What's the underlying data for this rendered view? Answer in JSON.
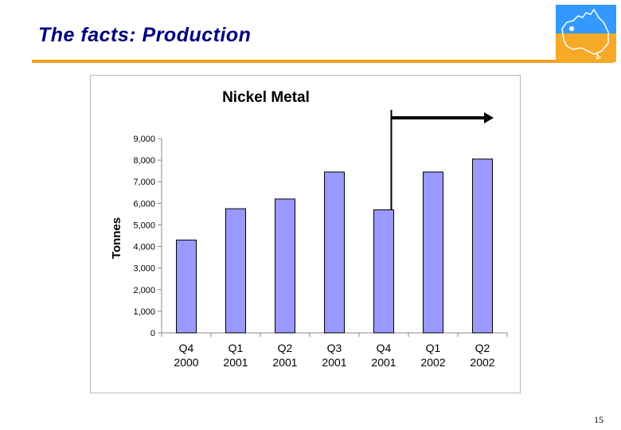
{
  "slide": {
    "title": "The facts: Production",
    "page_number": "15"
  },
  "colors": {
    "title": "#000080",
    "rule": "#f0a020",
    "bar_fill": "#9999ff",
    "bar_stroke": "#000000",
    "logo_sky": "#3399ff",
    "logo_land": "#f7a928"
  },
  "icons": {
    "logo": "australia-map-logo-icon"
  },
  "chart_data": {
    "type": "bar",
    "title": "Nickel Metal",
    "ylabel": "Tonnes",
    "xlabel": "",
    "ylim": [
      0,
      9000
    ],
    "yticks": [
      "0",
      "1,000",
      "2,000",
      "3,000",
      "4,000",
      "5,000",
      "6,000",
      "7,000",
      "8,000",
      "9,000"
    ],
    "categories": [
      [
        "Q4",
        "2000"
      ],
      [
        "Q1",
        "2001"
      ],
      [
        "Q2",
        "2001"
      ],
      [
        "Q3",
        "2001"
      ],
      [
        "Q4",
        "2001"
      ],
      [
        "Q1",
        "2002"
      ],
      [
        "Q2",
        "2002"
      ]
    ],
    "values": [
      4300,
      5750,
      6200,
      7450,
      5700,
      7450,
      8050
    ],
    "grid": false,
    "legend": "none",
    "annotation": "arrow-from-Q4-2001-to-Q2-2002"
  }
}
